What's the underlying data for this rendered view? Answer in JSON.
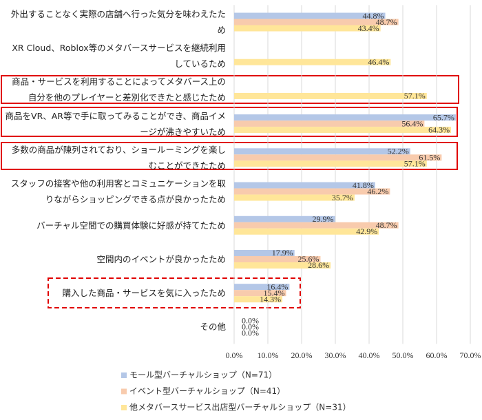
{
  "chart_data": {
    "type": "bar",
    "orientation": "horizontal",
    "categories": [
      "外出することなく実際の店舗へ行った気分を味わえたため",
      "XR Cloud、Roblox等のメタバースサービスを継続利用しているため",
      "商品・サービスを利用することによってメタバース上の自分を他のプレイヤーと差別化できたと感じたため",
      "商品をVR、AR等で手に取ってみることができ、商品イメージが沸きやすいため",
      "多数の商品が陳列されており、ショールーミングを楽しむことができたため",
      "スタッフの接客や他の利用客とコミュニケーションを取りながらショッピングできる点が良かったため",
      "バーチャル空間での購買体験に好感が持てたため",
      "空間内のイベントが良かったため",
      "購入した商品・サービスを気に入ったため",
      "その他"
    ],
    "series": [
      {
        "name": "モール型バーチャルショップ（N=71）",
        "color": "#b4c7e7",
        "values": [
          44.8,
          null,
          null,
          65.7,
          52.2,
          41.8,
          29.9,
          17.9,
          16.4,
          0
        ],
        "value_labels": [
          "44.8%",
          null,
          null,
          "65.7%",
          "52.2%",
          "41.8%",
          "29.9%",
          "17.9%",
          "16.4%",
          "0.0%"
        ]
      },
      {
        "name": "イベント型バーチャルショップ（N=41）",
        "color": "#f8cbad",
        "values": [
          48.7,
          null,
          null,
          56.4,
          61.5,
          46.2,
          48.7,
          25.6,
          15.4,
          0
        ],
        "value_labels": [
          "48.7%",
          null,
          null,
          "56.4%",
          "61.5%",
          "46.2%",
          "48.7%",
          "25.6%",
          "15.4%",
          "0.0%"
        ]
      },
      {
        "name": "他メタバースサービス出店型バーチャルショップ（N=31）",
        "color": "#ffe699",
        "values": [
          43.4,
          46.4,
          57.1,
          64.3,
          57.1,
          35.7,
          42.9,
          28.6,
          14.3,
          0
        ],
        "value_labels": [
          "43.4%",
          "46.4%",
          "57.1%",
          "64.3%",
          "57.1%",
          "35.7%",
          "42.9%",
          "28.6%",
          "14.3%",
          "0.0%"
        ]
      }
    ],
    "xlim": [
      0,
      70
    ],
    "xticks": [
      {
        "value": 0,
        "label": "0.0%"
      },
      {
        "value": 10,
        "label": "10.0%"
      },
      {
        "value": 20,
        "label": "20.0%"
      },
      {
        "value": 30,
        "label": "30.0%"
      },
      {
        "value": 40,
        "label": "40.0%"
      },
      {
        "value": 50,
        "label": "50.0%"
      },
      {
        "value": 60,
        "label": "60.0%"
      },
      {
        "value": 70,
        "label": "70.0%"
      }
    ],
    "grid": true
  }
}
